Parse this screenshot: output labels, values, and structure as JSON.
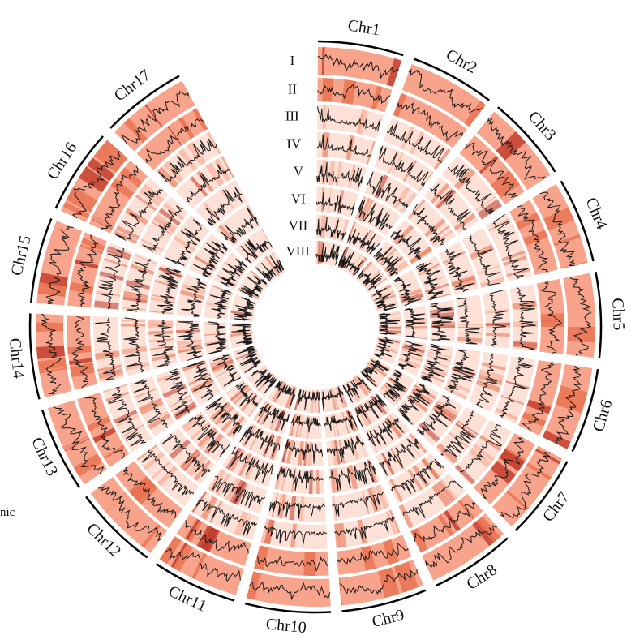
{
  "chart_data": {
    "type": "circos",
    "chromosomes": [
      "Chr1",
      "Chr2",
      "Chr3",
      "Chr4",
      "Chr5",
      "Chr6",
      "Chr7",
      "Chr8",
      "Chr9",
      "Chr10",
      "Chr11",
      "Chr12",
      "Chr13",
      "Chr14",
      "Chr15",
      "Chr16",
      "Chr17"
    ],
    "tracks": [
      "I",
      "II",
      "III",
      "IV",
      "V",
      "VI",
      "VII",
      "VIII"
    ],
    "cut_text": "nic",
    "colors": {
      "light": "#fde0d6",
      "medium": "#f8a48c",
      "dark": "#e8704f",
      "darkest": "#c0392b",
      "line": "#1a1a1a",
      "outline": "#000000"
    }
  }
}
